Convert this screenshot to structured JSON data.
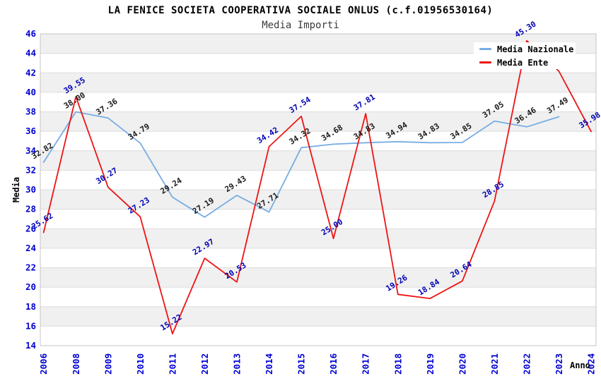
{
  "header": {
    "title": "LA FENICE SOCIETA COOPERATIVA SOCIALE ONLUS (c.f.01956530164)",
    "subtitle": "Media Importi"
  },
  "colors": {
    "background": "#ffffff",
    "title": "#000000",
    "subtitle": "#3c3c3c",
    "axis_tick": "#0000d2",
    "grid_band": "#f0f0f0",
    "gridline": "#dcdcdc",
    "plot_border": "#c4c4c4",
    "label_nazionale": "#1a1a1a",
    "label_ente": "#0000b4"
  },
  "chart_data": {
    "type": "line",
    "title": "LA FENICE SOCIETA COOPERATIVA SOCIALE ONLUS (c.f.01956530164)",
    "subtitle": "Media Importi",
    "xlabel": "Anno",
    "ylabel": "Media",
    "ylim": [
      14,
      46
    ],
    "y_ticks": [
      14,
      16,
      18,
      20,
      22,
      24,
      26,
      28,
      30,
      32,
      34,
      36,
      38,
      40,
      42,
      44,
      46
    ],
    "grid": "horizontal gridlines with alternating gray/white bands",
    "legend_position": "top-right",
    "categories": [
      "2006",
      "2008",
      "2009",
      "2010",
      "2011",
      "2012",
      "2013",
      "2014",
      "2015",
      "2016",
      "2017",
      "2018",
      "2019",
      "2020",
      "2021",
      "2022",
      "2023",
      "2024"
    ],
    "series": [
      {
        "name": "Media Nazionale",
        "color": "#77ade3",
        "label_color": "#1a1a1a",
        "values": [
          32.82,
          38.0,
          37.36,
          34.79,
          29.24,
          27.19,
          29.43,
          27.71,
          34.32,
          34.68,
          34.83,
          34.94,
          34.83,
          34.85,
          37.05,
          36.46,
          37.49,
          null
        ],
        "labels": [
          "32.82",
          "38.00",
          "37.36",
          "34.79",
          "29.24",
          "27.19",
          "29.43",
          "27.71",
          "34.32",
          "34.68",
          "34.83",
          "34.94",
          "34.83",
          "34.85",
          "37.05",
          "36.46",
          "37.49",
          ""
        ]
      },
      {
        "name": "Media Ente",
        "color": "#ed1414",
        "label_color": "#0000b4",
        "values": [
          25.62,
          39.55,
          30.27,
          27.23,
          15.22,
          22.97,
          20.53,
          34.42,
          37.54,
          25.0,
          37.81,
          19.26,
          18.84,
          20.64,
          28.85,
          45.3,
          42.16,
          35.98
        ],
        "labels": [
          "25.62",
          "39.55",
          "30.27",
          "27.23",
          "15.22",
          "22.97",
          "20.53",
          "34.42",
          "37.54",
          "25.00",
          "37.81",
          "19.26",
          "18.84",
          "20.64",
          "28.85",
          "45.30",
          "",
          "35.98"
        ],
        "note": "2023 point label hidden behind legend box"
      }
    ]
  }
}
